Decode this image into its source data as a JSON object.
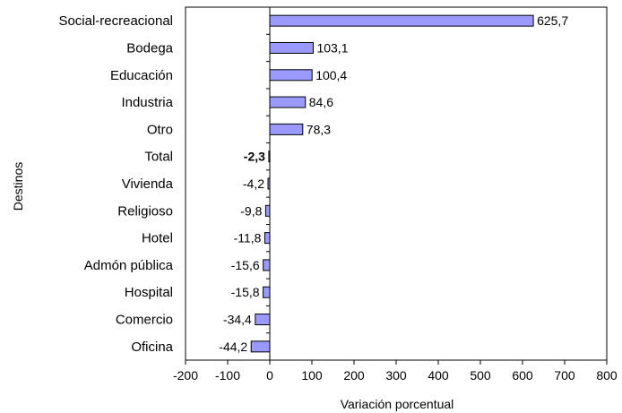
{
  "chart_data": {
    "type": "bar",
    "orientation": "horizontal",
    "xlabel": "Variación porcentual",
    "ylabel": "Destinos",
    "xlim": [
      -200,
      800
    ],
    "xticks": [
      -200,
      -100,
      0,
      100,
      200,
      300,
      400,
      500,
      600,
      700,
      800
    ],
    "grid": false,
    "bar_color": "#9999ff",
    "categories": [
      "Social-recreacional",
      "Bodega",
      "Educación",
      "Industria",
      "Otro",
      "Total",
      "Vivienda",
      "Religioso",
      "Hotel",
      "Admón pública",
      "Hospital",
      "Comercio",
      "Oficina"
    ],
    "values": [
      625.7,
      103.1,
      100.4,
      84.6,
      78.3,
      -2.3,
      -4.2,
      -9.8,
      -11.8,
      -15.6,
      -15.8,
      -34.4,
      -44.2
    ],
    "value_labels": [
      "625,7",
      "103,1",
      "100,4",
      "84,6",
      "78,3",
      "-2,3",
      "-4,2",
      "-9,8",
      "-11,8",
      "-15,6",
      "-15,8",
      "-34,4",
      "-44,2"
    ],
    "bold_category": "Total"
  }
}
